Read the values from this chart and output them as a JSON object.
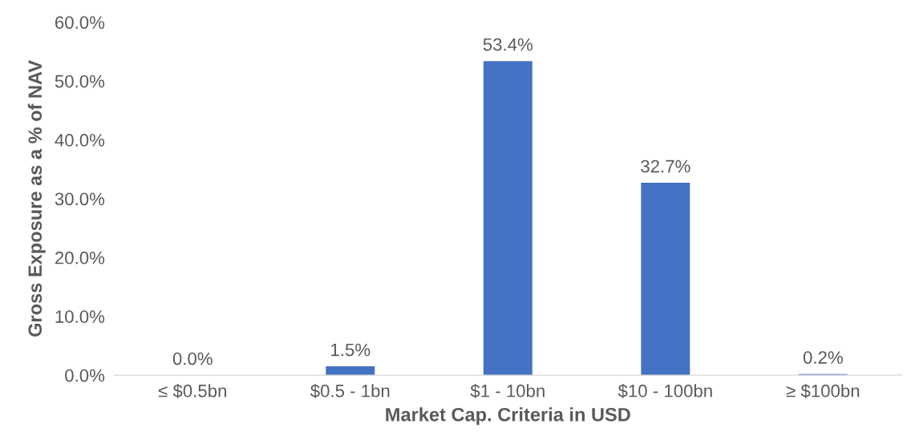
{
  "chart_data": {
    "type": "bar",
    "xlabel": "Market Cap. Criteria in USD",
    "ylabel": "Gross Exposure as a % of NAV",
    "categories": [
      "≤ $0.5bn",
      "$0.5 - 1bn",
      "$1 - 10bn",
      "$10 - 100bn",
      "≥ $100bn"
    ],
    "values": [
      0.0,
      1.5,
      53.4,
      32.7,
      0.2
    ],
    "value_labels": [
      "0.0%",
      "1.5%",
      "53.4%",
      "32.7%",
      "0.2%"
    ],
    "color": "#4472c4",
    "ylim": [
      0,
      60
    ],
    "yticks": [
      {
        "value": 0,
        "label": "0.0%"
      },
      {
        "value": 10,
        "label": "10.0%"
      },
      {
        "value": 20,
        "label": "20.0%"
      },
      {
        "value": 30,
        "label": "30.0%"
      },
      {
        "value": 40,
        "label": "40.0%"
      },
      {
        "value": 50,
        "label": "50.0%"
      },
      {
        "value": 60,
        "label": "60.0%"
      }
    ],
    "grid": false,
    "legend": false
  }
}
